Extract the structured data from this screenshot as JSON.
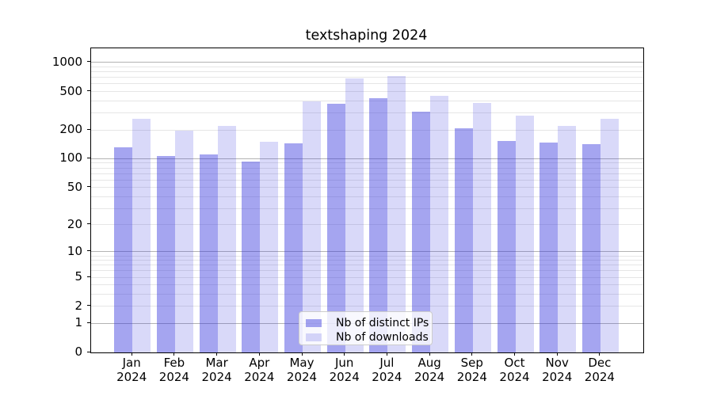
{
  "figure": {
    "background": "#ffffff",
    "spine_color": "#000000",
    "major_grid_color": "#b3b3b3",
    "minor_grid_color": "#e6e6e6"
  },
  "chart_data": {
    "type": "bar",
    "title": "textshaping 2024",
    "xlabel": "",
    "ylabel": "",
    "x_months": [
      "Jan",
      "Feb",
      "Mar",
      "Apr",
      "May",
      "Jun",
      "Jul",
      "Aug",
      "Sep",
      "Oct",
      "Nov",
      "Dec"
    ],
    "x_year": "2024",
    "series": [
      {
        "name": "Nb of distinct IPs",
        "color": "rgba(50,50,220,0.44)",
        "values": [
          133,
          106,
          112,
          93,
          146,
          377,
          428,
          312,
          207,
          154,
          148,
          141
        ]
      },
      {
        "name": "Nb of downloads",
        "color": "rgba(50,50,220,0.185)",
        "values": [
          259,
          197,
          221,
          150,
          397,
          687,
          718,
          448,
          382,
          282,
          219,
          263
        ]
      }
    ],
    "y_scale": "log10(1+v)",
    "y_ticks": [
      0,
      1,
      2,
      5,
      10,
      20,
      50,
      100,
      200,
      500,
      1000
    ],
    "y_major_gridlines": [
      1,
      10,
      100,
      1000
    ],
    "ylim": [
      0,
      1418
    ],
    "grid": true,
    "legend_position": "lower center"
  }
}
